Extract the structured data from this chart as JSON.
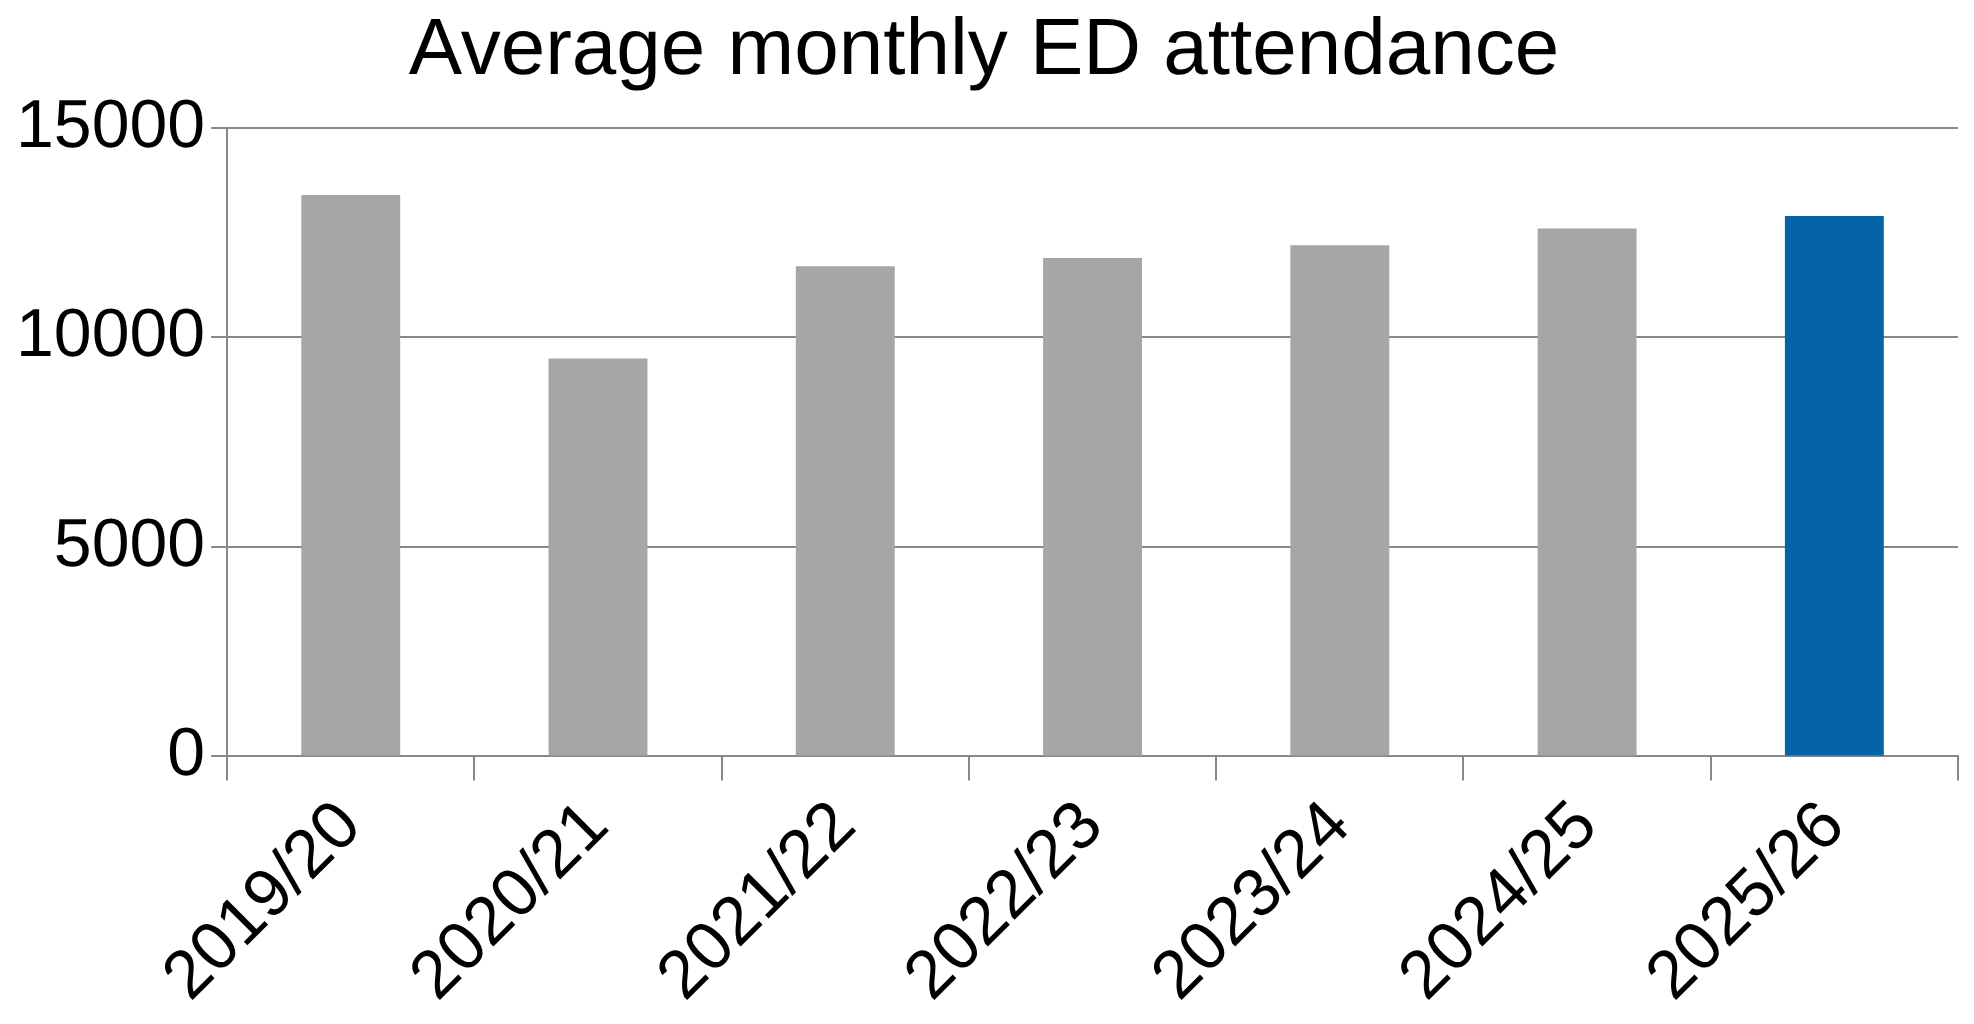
{
  "chart_data": {
    "type": "bar",
    "title": "Average monthly ED attendance",
    "categories": [
      "2019/20",
      "2020/21",
      "2021/22",
      "2022/23",
      "2023/24",
      "2024/25",
      "2025/26"
    ],
    "values": [
      13400,
      9500,
      11700,
      11900,
      12200,
      12600,
      12900
    ],
    "colors": [
      "#a6a6a6",
      "#a6a6a6",
      "#a6a6a6",
      "#a6a6a6",
      "#a6a6a6",
      "#a6a6a6",
      "#0563a8"
    ],
    "ylim": [
      0,
      15000
    ],
    "yticks": [
      0,
      5000,
      10000,
      15000
    ],
    "grid": "y",
    "legend": false
  }
}
